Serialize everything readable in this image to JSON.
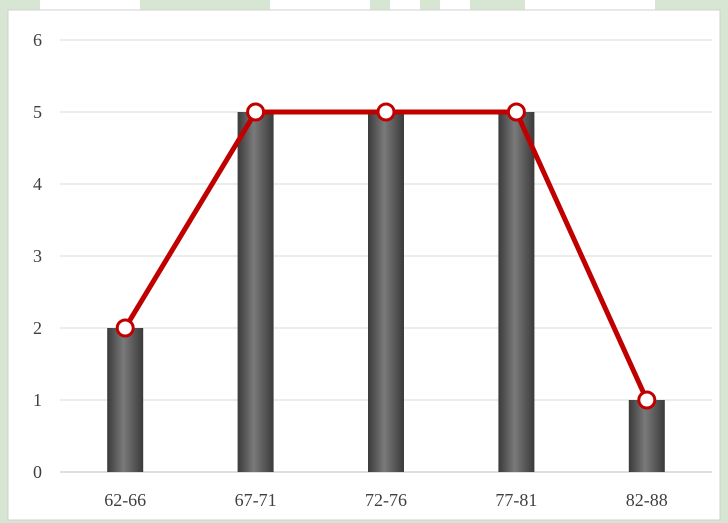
{
  "chart_data": {
    "type": "bar",
    "categories": [
      "62-66",
      "67-71",
      "72-76",
      "77-81",
      "82-88"
    ],
    "series": [
      {
        "type": "bar",
        "values": [
          2,
          5,
          5,
          5,
          1
        ],
        "color": "#5f5f5f"
      },
      {
        "type": "line",
        "values": [
          2,
          5,
          5,
          5,
          1
        ],
        "color": "#c00000",
        "marker_fill": "#ffffff"
      }
    ],
    "y_ticks": [
      0,
      1,
      2,
      3,
      4,
      5,
      6
    ],
    "ylim": [
      0,
      6
    ],
    "grid": true,
    "background_color": "#d7e5d3"
  }
}
